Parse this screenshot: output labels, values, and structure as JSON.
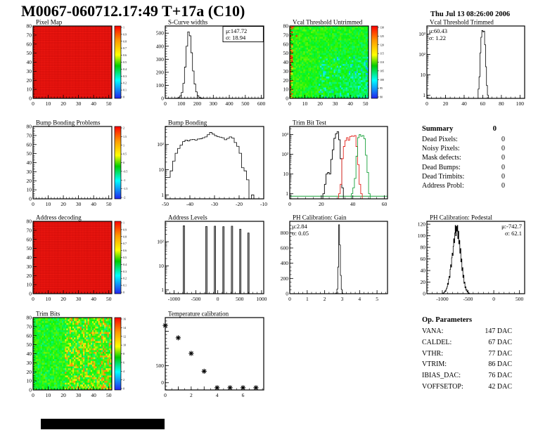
{
  "header": {
    "title": "M0067-060712.17:49 T+17a (C10)",
    "timestamp": "Thu Jul 13 08:26:00 2006"
  },
  "summary": {
    "title": "Summary",
    "value": "0",
    "rows": [
      {
        "label": "Dead Pixels:",
        "value": "0"
      },
      {
        "label": "Noisy Pixels:",
        "value": "0"
      },
      {
        "label": "Mask defects:",
        "value": "0"
      },
      {
        "label": "Dead Bumps:",
        "value": "0"
      },
      {
        "label": "Dead Trimbits:",
        "value": "0"
      },
      {
        "label": "Address Probl:",
        "value": "0"
      }
    ]
  },
  "op_parameters": {
    "title": "Op. Parameters",
    "rows": [
      {
        "label": "VANA:",
        "value": "147 DAC"
      },
      {
        "label": "CALDEL:",
        "value": "67 DAC"
      },
      {
        "label": "VTHR:",
        "value": "77 DAC"
      },
      {
        "label": "VTRIM:",
        "value": "86 DAC"
      },
      {
        "label": "IBIAS_DAC:",
        "value": "76 DAC"
      },
      {
        "label": "VOFFSETOP:",
        "value": "42 DAC"
      }
    ]
  },
  "colors": {
    "heatmap_red": "#f21811",
    "accent_red": "#e3231c",
    "accent_green": "#18a13a"
  },
  "chart_data": [
    {
      "id": "pixel-map",
      "title": "Pixel Map",
      "type": "heatmap",
      "style": "uniform-red",
      "seed": 1,
      "x": {
        "min": 0,
        "max": 52,
        "ticks": [
          0,
          10,
          20,
          30,
          40,
          50
        ],
        "minor_step": 2
      },
      "y": {
        "min": 0,
        "max": 80,
        "ticks": [
          0,
          10,
          20,
          30,
          40,
          50,
          60,
          70,
          80
        ],
        "minor_step": 2
      },
      "colorbar": {
        "labels": [
          "1",
          "0.9",
          "0.8",
          "0.7",
          "0.6",
          "0.5",
          "0.4",
          "0.3",
          "0.2",
          "0.1",
          "0"
        ]
      }
    },
    {
      "id": "s-curve-widths",
      "title": "S-Curve widths",
      "type": "histogram",
      "stats": {
        "lines": [
          "μ:147.72",
          "σ: 18.94"
        ],
        "pos": "tr-box"
      },
      "x": {
        "min": 0,
        "max": 615,
        "ticks": [
          0,
          100,
          200,
          300,
          400,
          500,
          600
        ],
        "minor_step": 20
      },
      "y": {
        "min": 0,
        "max": 555,
        "ticks": [
          0,
          100,
          200,
          300,
          400,
          500
        ],
        "minor_step": 20
      },
      "bins": {
        "start": 60,
        "width": 10,
        "counts": [
          1,
          2,
          6,
          18,
          45,
          115,
          240,
          400,
          510,
          480,
          350,
          210,
          110,
          50,
          20,
          8,
          3,
          1
        ]
      }
    },
    {
      "id": "vcal-untrimmed",
      "title": "Vcal Threshold Untrimmed",
      "type": "heatmap",
      "style": "noise-vcal",
      "seed": 13,
      "x": {
        "min": 0,
        "max": 52,
        "ticks": [
          0,
          10,
          20,
          30,
          40,
          50
        ],
        "minor_step": 2
      },
      "y": {
        "min": 0,
        "max": 80,
        "ticks": [
          0,
          10,
          20,
          30,
          40,
          50,
          60,
          70,
          80
        ],
        "minor_step": 2
      },
      "colorbar": {
        "labels": [
          "130",
          "125",
          "120",
          "115",
          "110",
          "105",
          "100",
          "95",
          "90"
        ]
      }
    },
    {
      "id": "vcal-trimmed",
      "title": "Vcal Threshold Trimmed",
      "type": "histogram",
      "stats": {
        "lines": [
          "μ:60.43",
          "σ: 1.22"
        ],
        "pos": "tl"
      },
      "x": {
        "min": 0,
        "max": 105,
        "ticks": [
          0,
          20,
          40,
          60,
          80,
          100
        ],
        "minor_step": 5
      },
      "y": {
        "scale": "log",
        "min": 0.7,
        "max": 2500,
        "ticks": [
          1,
          10,
          100,
          1000
        ],
        "tick_labels": [
          "1",
          "10",
          "10²",
          "10³"
        ]
      },
      "bins": {
        "start": 55,
        "width": 1,
        "counts": [
          2,
          8,
          120,
          700,
          1500,
          1300,
          1400,
          300,
          25,
          3,
          1
        ]
      }
    },
    {
      "id": "bump-problems",
      "title": "Bump Bonding Problems",
      "type": "heatmap",
      "style": "empty",
      "seed": 2,
      "x": {
        "min": 0,
        "max": 52,
        "ticks": [
          0,
          10,
          20,
          30,
          40,
          50
        ],
        "minor_step": 2
      },
      "y": {
        "min": 0,
        "max": 80,
        "ticks": [
          0,
          10,
          20,
          30,
          40,
          50,
          60,
          70,
          80
        ],
        "minor_step": 2
      },
      "colorbar": {
        "labels": [
          "2",
          "1.5",
          "1",
          "0.5",
          "0",
          "-0.5",
          "-1",
          "-1.5",
          "-2"
        ]
      }
    },
    {
      "id": "bump-bonding",
      "title": "Bump Bonding",
      "type": "histogram",
      "x": {
        "min": -50,
        "max": -10,
        "ticks": [
          -50,
          -40,
          -30,
          -20,
          -10
        ],
        "minor_step": 2
      },
      "y": {
        "scale": "log",
        "min": 0.7,
        "max": 520,
        "ticks": [
          1,
          10,
          100
        ],
        "tick_labels": [
          "1",
          "10",
          "10²"
        ]
      },
      "bins": {
        "start": -50,
        "width": 1,
        "counts": [
          5,
          5,
          9,
          22,
          45,
          70,
          95,
          130,
          150,
          140,
          155,
          160,
          150,
          165,
          170,
          185,
          200,
          245,
          300,
          260,
          225,
          205,
          195,
          185,
          155,
          175,
          200,
          180,
          120,
          85,
          45,
          12,
          9,
          4,
          0,
          1,
          0,
          0,
          0,
          0
        ]
      }
    },
    {
      "id": "trim-bit-test",
      "title": "Trim Bit Test",
      "type": "multi-histogram",
      "x": {
        "min": 0,
        "max": 62,
        "ticks": [
          0,
          20,
          40,
          60
        ],
        "minor_step": 5
      },
      "y": {
        "scale": "log",
        "min": 0.55,
        "max": 2600,
        "ticks": [
          1,
          10,
          100,
          1000
        ],
        "tick_labels": [
          "1",
          "10",
          "10²",
          "10³"
        ]
      },
      "baseline": {
        "color": "#18a13a",
        "y": 0.75
      },
      "series": [
        {
          "name": "trim-hist-black",
          "color": "#000000",
          "bins": {
            "start": 21,
            "width": 1,
            "counts": [
              1,
              3,
              10,
              12,
              10,
              55,
              170,
              650,
              1100,
              1400,
              550,
              60,
              2
            ]
          }
        },
        {
          "name": "trim-hist-red",
          "color": "#e3231c",
          "bins": {
            "start": 31,
            "width": 1,
            "counts": [
              1,
              3,
              60,
              250,
              500,
              700,
              520,
              800,
              850,
              820,
              900,
              250,
              30,
              3,
              1
            ]
          }
        },
        {
          "name": "trim-hist-green",
          "color": "#18a13a",
          "bins": {
            "start": 39,
            "width": 1,
            "counts": [
              1,
              2,
              6,
              80,
              700,
              1000,
              820,
              900,
              620,
              90,
              12,
              1
            ]
          }
        }
      ]
    },
    {
      "id": "address-decoding",
      "title": "Address decoding",
      "type": "heatmap",
      "style": "uniform-red",
      "seed": 3,
      "x": {
        "min": 0,
        "max": 52,
        "ticks": [
          0,
          10,
          20,
          30,
          40,
          50
        ],
        "minor_step": 2
      },
      "y": {
        "min": 0,
        "max": 80,
        "ticks": [
          0,
          10,
          20,
          30,
          40,
          50,
          60,
          70,
          80
        ],
        "minor_step": 2
      },
      "colorbar": {
        "labels": [
          "1",
          "0.9",
          "0.8",
          "0.7",
          "0.6",
          "0.5",
          "0.4",
          "0.3",
          "0.2",
          "0.1",
          "0"
        ]
      }
    },
    {
      "id": "address-levels",
      "title": "Address Levels",
      "type": "spikes",
      "x": {
        "min": -1200,
        "max": 1050,
        "ticks": [
          -1000,
          -500,
          0,
          500,
          1000
        ],
        "minor_step": 100
      },
      "y": {
        "scale": "log",
        "min": 0.7,
        "max": 700,
        "ticks": [
          1,
          10,
          100
        ],
        "tick_labels": [
          "1",
          "10",
          "10²"
        ]
      },
      "spikes": [
        [
          -780,
          460
        ],
        [
          -265,
          430
        ],
        [
          -70,
          440
        ],
        [
          125,
          420
        ],
        [
          320,
          440
        ],
        [
          510,
          330
        ],
        [
          695,
          230
        ]
      ],
      "spike_width": 22,
      "fill": "#999999"
    },
    {
      "id": "ph-gain",
      "title": "PH Calibration: Gain",
      "type": "histogram",
      "stats": {
        "lines": [
          "μ:2.84",
          "σ: 0.05"
        ],
        "pos": "tl"
      },
      "x": {
        "min": 0,
        "max": 5.6,
        "ticks": [
          0,
          1,
          2,
          3,
          4,
          5
        ],
        "minor_step": 0.25
      },
      "y": {
        "min": 0,
        "max": 950,
        "ticks": [
          0,
          200,
          400,
          600,
          800
        ],
        "minor_step": 50
      },
      "bins": {
        "start": 2.6,
        "width": 0.05,
        "counts": [
          2,
          10,
          60,
          350,
          905,
          640,
          240,
          55,
          8,
          1
        ]
      }
    },
    {
      "id": "ph-pedestal",
      "title": "PH Calibration: Pedestal",
      "type": "histogram",
      "stats": {
        "lines": [
          "μ:-742.7",
          "σ: 62.1"
        ],
        "pos": "tr"
      },
      "x": {
        "min": -1300,
        "max": 600,
        "ticks": [
          -1000,
          -500,
          0,
          500
        ],
        "minor_step": 100
      },
      "y": {
        "min": 0,
        "max": 125,
        "ticks": [
          0,
          20,
          40,
          60,
          80,
          100,
          120
        ],
        "minor_step": 5
      },
      "bins": {
        "start": -990,
        "width": 10,
        "counts": [
          1,
          1,
          2,
          3,
          5,
          4,
          7,
          9,
          12,
          18,
          16,
          25,
          30,
          28,
          42,
          50,
          46,
          62,
          70,
          66,
          82,
          95,
          88,
          105,
          118,
          100,
          116,
          108,
          118,
          95,
          108,
          86,
          92,
          70,
          78,
          55,
          60,
          40,
          45,
          28,
          32,
          18,
          20,
          10,
          12,
          6,
          7,
          3,
          4,
          2,
          1,
          1
        ]
      }
    },
    {
      "id": "trim-bits",
      "title": "Trim Bits",
      "type": "heatmap",
      "style": "noise-trim",
      "seed": 5,
      "x": {
        "min": 0,
        "max": 52,
        "ticks": [
          0,
          10,
          20,
          30,
          40,
          50
        ],
        "minor_step": 2
      },
      "y": {
        "min": 0,
        "max": 80,
        "ticks": [
          0,
          10,
          20,
          30,
          40,
          50,
          60,
          70,
          80
        ],
        "minor_step": 2
      },
      "colorbar": {
        "labels": [
          "16",
          "14",
          "12",
          "10",
          "8",
          "6",
          "4",
          "2",
          "0"
        ]
      }
    },
    {
      "id": "temp-cal",
      "title": "Temperature calibration",
      "type": "scatter",
      "x": {
        "min": 0,
        "max": 7.6,
        "ticks": [
          0,
          2,
          4,
          6
        ],
        "unlabeled": [
          1,
          3,
          5,
          7
        ],
        "minor_step": 0.5
      },
      "y": {
        "min": -210,
        "max": 1900,
        "ticks": [
          0,
          500
        ],
        "unlabeled": [
          1000,
          1500
        ],
        "minor_step": 100
      },
      "points": [
        [
          0,
          1670
        ],
        [
          1,
          1310
        ],
        [
          2,
          855
        ],
        [
          3,
          335
        ],
        [
          4,
          -145
        ],
        [
          5,
          -145
        ],
        [
          6,
          -145
        ],
        [
          7,
          -145
        ]
      ]
    }
  ]
}
